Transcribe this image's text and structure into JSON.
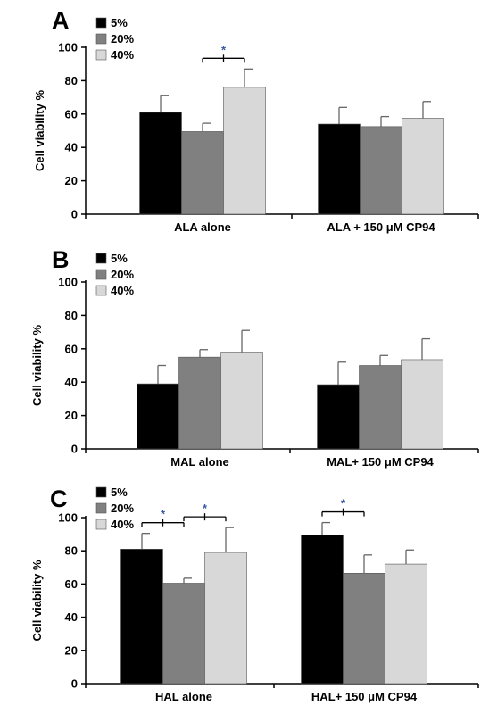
{
  "chart_data": [
    {
      "panel": "A",
      "type": "bar",
      "ylabel": "Cell viability %",
      "ylim": [
        0,
        100
      ],
      "yticks": [
        0,
        20,
        40,
        60,
        80,
        100
      ],
      "categories": [
        "ALA alone",
        "ALA + 150 μM CP94"
      ],
      "series": [
        {
          "name": "5%",
          "color": "#000000",
          "values": [
            61,
            54
          ],
          "errors": [
            10,
            10
          ]
        },
        {
          "name": "20%",
          "color": "#808080",
          "values": [
            49.5,
            52.5
          ],
          "errors": [
            5,
            6
          ]
        },
        {
          "name": "40%",
          "color": "#d8d8d8",
          "values": [
            76,
            57.5
          ],
          "errors": [
            11,
            10
          ]
        }
      ],
      "significance": [
        {
          "category": 0,
          "from_series": 1,
          "to_series": 2,
          "label": "*"
        }
      ],
      "legend": "top-left"
    },
    {
      "panel": "B",
      "type": "bar",
      "ylabel": "Cell viability %",
      "ylim": [
        0,
        100
      ],
      "yticks": [
        0,
        20,
        40,
        60,
        80,
        100
      ],
      "categories": [
        "MAL alone",
        "MAL+ 150 μM CP94"
      ],
      "series": [
        {
          "name": "5%",
          "color": "#000000",
          "values": [
            39,
            38.5
          ],
          "errors": [
            11,
            13.5
          ]
        },
        {
          "name": "20%",
          "color": "#808080",
          "values": [
            55,
            50
          ],
          "errors": [
            4.5,
            6
          ]
        },
        {
          "name": "40%",
          "color": "#d8d8d8",
          "values": [
            58,
            53.5
          ],
          "errors": [
            13,
            12.5
          ]
        }
      ],
      "significance": [],
      "legend": "top-left"
    },
    {
      "panel": "C",
      "type": "bar",
      "ylabel": "Cell viability %",
      "ylim": [
        0,
        100
      ],
      "yticks": [
        0,
        20,
        40,
        60,
        80,
        100
      ],
      "categories": [
        "HAL alone",
        "HAL+ 150 μM CP94"
      ],
      "series": [
        {
          "name": "5%",
          "color": "#000000",
          "values": [
            81,
            89.5
          ],
          "errors": [
            9.5,
            7.5
          ]
        },
        {
          "name": "20%",
          "color": "#808080",
          "values": [
            60.5,
            66.5
          ],
          "errors": [
            3,
            11
          ]
        },
        {
          "name": "40%",
          "color": "#d8d8d8",
          "values": [
            79,
            72
          ],
          "errors": [
            15,
            8.5
          ]
        }
      ],
      "significance": [
        {
          "category": 0,
          "from_series": 0,
          "to_series": 1,
          "label": "*"
        },
        {
          "category": 0,
          "from_series": 1,
          "to_series": 2,
          "label": "*"
        },
        {
          "category": 1,
          "from_series": 0,
          "to_series": 1,
          "label": "*"
        }
      ],
      "legend": "top-left"
    }
  ]
}
